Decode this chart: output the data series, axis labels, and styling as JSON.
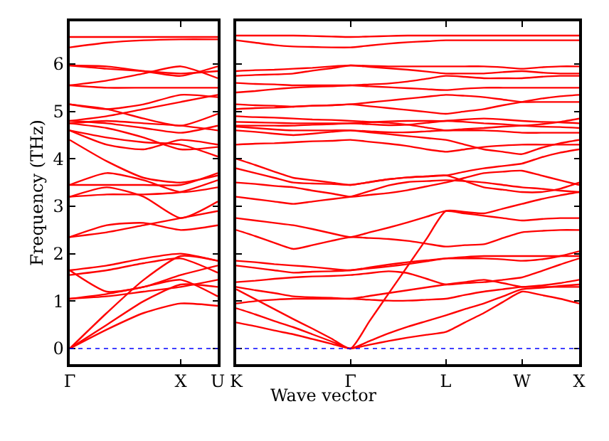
{
  "chart_data": [
    {
      "type": "line",
      "ylabel": "Frequency (THz)",
      "categories": [
        "Γ",
        null,
        null,
        "X",
        "U"
      ],
      "ylim": [
        -0.33,
        6.9
      ],
      "yticks": [
        0,
        1,
        2,
        3,
        4,
        5,
        6
      ],
      "ref_lines": [
        {
          "axis": "y",
          "value": 0,
          "color": "#0000ff",
          "line_style": "dotted"
        }
      ],
      "series": [
        {
          "color": "#ff0000",
          "values": [
            0,
            0.4,
            0.75,
            0.95,
            0.9
          ]
        },
        {
          "color": "#ff0000",
          "values": [
            0,
            0.5,
            1.0,
            1.35,
            1.3
          ]
        },
        {
          "color": "#ff0000",
          "values": [
            0,
            0.75,
            1.45,
            1.95,
            1.85
          ]
        },
        {
          "color": "#ff0000",
          "values": [
            1.05,
            1.1,
            1.2,
            1.3,
            1.45
          ]
        },
        {
          "color": "#ff0000",
          "values": [
            1.05,
            1.15,
            1.3,
            1.45,
            1.1
          ]
        },
        {
          "color": "#ff0000",
          "values": [
            1.55,
            1.65,
            1.8,
            1.9,
            1.6
          ]
        },
        {
          "color": "#ff0000",
          "values": [
            1.65,
            1.2,
            1.3,
            1.55,
            1.75
          ]
        },
        {
          "color": "#ff0000",
          "values": [
            1.65,
            1.75,
            1.9,
            2.0,
            1.85
          ]
        },
        {
          "color": "#ff0000",
          "values": [
            2.35,
            2.6,
            2.65,
            2.5,
            2.6
          ]
        },
        {
          "color": "#ff0000",
          "values": [
            2.35,
            2.45,
            2.6,
            2.75,
            2.9
          ]
        },
        {
          "color": "#ff0000",
          "values": [
            3.2,
            3.25,
            3.25,
            3.3,
            3.55
          ]
        },
        {
          "color": "#ff0000",
          "values": [
            3.2,
            3.4,
            3.2,
            2.75,
            3.1
          ]
        },
        {
          "color": "#ff0000",
          "values": [
            3.45,
            3.7,
            3.55,
            3.3,
            3.4
          ]
        },
        {
          "color": "#ff0000",
          "values": [
            3.45,
            3.45,
            3.45,
            3.45,
            3.7
          ]
        },
        {
          "color": "#ff0000",
          "values": [
            4.4,
            3.95,
            3.6,
            3.5,
            3.65
          ]
        },
        {
          "color": "#ff0000",
          "values": [
            4.6,
            4.3,
            4.2,
            4.4,
            4.3
          ]
        },
        {
          "color": "#ff0000",
          "values": [
            4.6,
            4.45,
            4.35,
            4.3,
            4.05
          ]
        },
        {
          "color": "#ff0000",
          "values": [
            4.75,
            4.65,
            4.45,
            4.2,
            4.25
          ]
        },
        {
          "color": "#ff0000",
          "values": [
            4.75,
            4.8,
            4.75,
            4.7,
            4.6
          ]
        },
        {
          "color": "#ff0000",
          "values": [
            4.8,
            4.75,
            4.65,
            4.55,
            4.7
          ]
        },
        {
          "color": "#ff0000",
          "values": [
            4.8,
            4.9,
            5.05,
            5.2,
            5.35
          ]
        },
        {
          "color": "#ff0000",
          "values": [
            5.15,
            5.05,
            5.15,
            5.35,
            5.3
          ]
        },
        {
          "color": "#ff0000",
          "values": [
            5.15,
            5.05,
            4.85,
            4.7,
            4.95
          ]
        },
        {
          "color": "#ff0000",
          "values": [
            5.55,
            5.5,
            5.5,
            5.5,
            5.5
          ]
        },
        {
          "color": "#ff0000",
          "values": [
            5.55,
            5.65,
            5.8,
            5.95,
            5.7
          ]
        },
        {
          "color": "#ff0000",
          "values": [
            5.97,
            5.9,
            5.85,
            5.8,
            5.85
          ]
        },
        {
          "color": "#ff0000",
          "values": [
            5.97,
            5.95,
            5.85,
            5.75,
            5.95
          ]
        },
        {
          "color": "#ff0000",
          "values": [
            6.35,
            6.45,
            6.5,
            6.52,
            6.52
          ]
        },
        {
          "color": "#ff0000",
          "values": [
            6.57,
            6.57,
            6.57,
            6.57,
            6.57
          ]
        }
      ]
    },
    {
      "type": "line",
      "xlabel": "Wave vector",
      "categories": [
        "K",
        null,
        null,
        null,
        null,
        null,
        "Γ",
        null,
        null,
        null,
        null,
        "L",
        null,
        null,
        null,
        "W",
        null,
        null,
        "X"
      ],
      "ylim": [
        -0.33,
        6.9
      ],
      "yticks": [
        {
          "value": 0,
          "label": null
        },
        {
          "value": 1,
          "label": null
        },
        {
          "value": 2,
          "label": null
        },
        {
          "value": 3,
          "label": null
        },
        {
          "value": 4,
          "label": null
        },
        {
          "value": 5,
          "label": null
        },
        {
          "value": 6,
          "label": null
        }
      ],
      "tick_labels": "x",
      "ref_lines": [
        {
          "axis": "y",
          "value": 0,
          "color": "#0000ff",
          "line_style": "dotted"
        }
      ],
      "series": [
        {
          "color": "#ff0000",
          "values": [
            0.55,
            0.47,
            0.38,
            0.3,
            0.2,
            0.1,
            0,
            0.08,
            0.16,
            0.23,
            0.29,
            0.35,
            0.55,
            0.75,
            0.98,
            1.2,
            1.13,
            1.05,
            0.95
          ]
        },
        {
          "color": "#ff0000",
          "values": [
            0.85,
            0.72,
            0.58,
            0.45,
            0.3,
            0.15,
            0,
            0.16,
            0.32,
            0.46,
            0.58,
            0.7,
            0.83,
            0.95,
            1.1,
            1.25,
            1.28,
            1.32,
            1.35
          ]
        },
        {
          "color": "#ff0000",
          "values": [
            1.25,
            1.04,
            0.83,
            0.62,
            0.42,
            0.21,
            0,
            0.58,
            1.16,
            1.74,
            2.32,
            2.9,
            2.88,
            2.85,
            2.95,
            3.05,
            3.15,
            3.23,
            3.3
          ]
        },
        {
          "color": "#ff0000",
          "values": [
            0.95,
            1.0,
            1.03,
            1.05,
            1.05,
            1.05,
            1.05,
            1.03,
            1.01,
            1.01,
            1.03,
            1.05,
            1.13,
            1.2,
            1.25,
            1.3,
            1.3,
            1.3,
            1.3
          ]
        },
        {
          "color": "#ff0000",
          "values": [
            1.3,
            1.23,
            1.17,
            1.1,
            1.08,
            1.07,
            1.05,
            1.11,
            1.17,
            1.23,
            1.29,
            1.35,
            1.4,
            1.45,
            1.38,
            1.3,
            1.33,
            1.38,
            1.45
          ]
        },
        {
          "color": "#ff0000",
          "values": [
            1.4,
            1.43,
            1.47,
            1.5,
            1.52,
            1.53,
            1.55,
            1.59,
            1.63,
            1.59,
            1.47,
            1.35,
            1.38,
            1.4,
            1.45,
            1.5,
            1.63,
            1.77,
            1.9
          ]
        },
        {
          "color": "#ff0000",
          "values": [
            1.75,
            1.7,
            1.65,
            1.6,
            1.62,
            1.63,
            1.65,
            1.69,
            1.73,
            1.78,
            1.84,
            1.9,
            1.93,
            1.95,
            1.95,
            1.95,
            1.95,
            1.95,
            1.95
          ]
        },
        {
          "color": "#ff0000",
          "values": [
            1.85,
            1.82,
            1.78,
            1.75,
            1.72,
            1.68,
            1.65,
            1.71,
            1.77,
            1.82,
            1.86,
            1.9,
            1.9,
            1.9,
            1.88,
            1.85,
            1.88,
            1.95,
            2.05
          ]
        },
        {
          "color": "#ff0000",
          "values": [
            2.5,
            2.37,
            2.23,
            2.1,
            2.18,
            2.27,
            2.35,
            2.33,
            2.31,
            2.27,
            2.21,
            2.15,
            2.18,
            2.2,
            2.33,
            2.45,
            2.48,
            2.5,
            2.5
          ]
        },
        {
          "color": "#ff0000",
          "values": [
            2.75,
            2.7,
            2.65,
            2.6,
            2.52,
            2.43,
            2.35,
            2.45,
            2.55,
            2.66,
            2.78,
            2.9,
            2.85,
            2.8,
            2.75,
            2.7,
            2.73,
            2.75,
            2.75
          ]
        },
        {
          "color": "#ff0000",
          "values": [
            3.2,
            3.15,
            3.1,
            3.05,
            3.1,
            3.15,
            3.2,
            3.32,
            3.44,
            3.51,
            3.53,
            3.55,
            3.53,
            3.5,
            3.45,
            3.4,
            3.37,
            3.33,
            3.3
          ]
        },
        {
          "color": "#ff0000",
          "values": [
            3.5,
            3.47,
            3.43,
            3.4,
            3.33,
            3.27,
            3.2,
            3.24,
            3.28,
            3.34,
            3.42,
            3.5,
            3.6,
            3.7,
            3.73,
            3.75,
            3.65,
            3.55,
            3.45
          ]
        },
        {
          "color": "#ff0000",
          "values": [
            3.8,
            3.7,
            3.6,
            3.5,
            3.48,
            3.47,
            3.45,
            3.51,
            3.57,
            3.61,
            3.63,
            3.65,
            3.53,
            3.4,
            3.35,
            3.3,
            3.3,
            3.37,
            3.5
          ]
        },
        {
          "color": "#ff0000",
          "values": [
            4.0,
            3.87,
            3.73,
            3.6,
            3.55,
            3.5,
            3.45,
            3.51,
            3.57,
            3.61,
            3.63,
            3.65,
            3.73,
            3.8,
            3.85,
            3.9,
            4.03,
            4.13,
            4.2
          ]
        },
        {
          "color": "#ff0000",
          "values": [
            4.3,
            4.32,
            4.33,
            4.35,
            4.37,
            4.38,
            4.4,
            4.36,
            4.32,
            4.27,
            4.2,
            4.15,
            4.2,
            4.25,
            4.28,
            4.3,
            4.3,
            4.3,
            4.3
          ]
        },
        {
          "color": "#ff0000",
          "values": [
            4.6,
            4.57,
            4.53,
            4.5,
            4.53,
            4.57,
            4.6,
            4.56,
            4.52,
            4.48,
            4.44,
            4.4,
            4.3,
            4.2,
            4.15,
            4.1,
            4.23,
            4.33,
            4.4
          ]
        },
        {
          "color": "#ff0000",
          "values": [
            4.68,
            4.65,
            4.62,
            4.6,
            4.6,
            4.6,
            4.6,
            4.58,
            4.56,
            4.56,
            4.58,
            4.6,
            4.6,
            4.6,
            4.58,
            4.55,
            4.55,
            4.55,
            4.55
          ]
        },
        {
          "color": "#ff0000",
          "values": [
            4.7,
            4.7,
            4.7,
            4.7,
            4.72,
            4.73,
            4.75,
            4.73,
            4.71,
            4.72,
            4.76,
            4.8,
            4.78,
            4.75,
            4.73,
            4.7,
            4.68,
            4.67,
            4.65
          ]
        },
        {
          "color": "#ff0000",
          "values": [
            4.78,
            4.77,
            4.76,
            4.75,
            4.75,
            4.75,
            4.75,
            4.77,
            4.79,
            4.8,
            4.8,
            4.8,
            4.83,
            4.85,
            4.83,
            4.8,
            4.78,
            4.77,
            4.75
          ]
        },
        {
          "color": "#ff0000",
          "values": [
            4.9,
            4.88,
            4.87,
            4.85,
            4.83,
            4.82,
            4.8,
            4.78,
            4.76,
            4.72,
            4.66,
            4.6,
            4.63,
            4.65,
            4.68,
            4.7,
            4.73,
            4.78,
            4.85
          ]
        },
        {
          "color": "#ff0000",
          "values": [
            5.05,
            5.07,
            5.08,
            5.1,
            5.12,
            5.13,
            5.15,
            5.19,
            5.23,
            5.27,
            5.31,
            5.35,
            5.33,
            5.3,
            5.25,
            5.2,
            5.2,
            5.2,
            5.2
          ]
        },
        {
          "color": "#ff0000",
          "values": [
            5.15,
            5.13,
            5.12,
            5.1,
            5.12,
            5.13,
            5.15,
            5.11,
            5.07,
            5.03,
            4.99,
            4.95,
            5.0,
            5.05,
            5.13,
            5.2,
            5.27,
            5.32,
            5.35
          ]
        },
        {
          "color": "#ff0000",
          "values": [
            5.4,
            5.43,
            5.47,
            5.5,
            5.52,
            5.53,
            5.55,
            5.53,
            5.51,
            5.49,
            5.47,
            5.45,
            5.48,
            5.5,
            5.5,
            5.5,
            5.5,
            5.5,
            5.5
          ]
        },
        {
          "color": "#ff0000",
          "values": [
            5.6,
            5.58,
            5.57,
            5.55,
            5.55,
            5.55,
            5.55,
            5.57,
            5.59,
            5.63,
            5.69,
            5.75,
            5.73,
            5.7,
            5.7,
            5.7,
            5.73,
            5.75,
            5.75
          ]
        },
        {
          "color": "#ff0000",
          "values": [
            5.75,
            5.77,
            5.78,
            5.8,
            5.86,
            5.91,
            5.97,
            5.94,
            5.91,
            5.88,
            5.84,
            5.8,
            5.8,
            5.8,
            5.83,
            5.85,
            5.82,
            5.8,
            5.8
          ]
        },
        {
          "color": "#ff0000",
          "values": [
            5.85,
            5.87,
            5.88,
            5.9,
            5.92,
            5.95,
            5.97,
            5.96,
            5.95,
            5.95,
            5.95,
            5.95,
            5.95,
            5.95,
            5.93,
            5.9,
            5.93,
            5.95,
            5.95
          ]
        },
        {
          "color": "#ff0000",
          "values": [
            6.5,
            6.45,
            6.4,
            6.37,
            6.36,
            6.35,
            6.35,
            6.39,
            6.43,
            6.46,
            6.48,
            6.5,
            6.5,
            6.5,
            6.5,
            6.5,
            6.5,
            6.5,
            6.5
          ]
        },
        {
          "color": "#ff0000",
          "values": [
            6.6,
            6.6,
            6.6,
            6.6,
            6.59,
            6.58,
            6.57,
            6.58,
            6.59,
            6.6,
            6.6,
            6.6,
            6.6,
            6.6,
            6.6,
            6.6,
            6.6,
            6.6,
            6.6
          ]
        }
      ]
    }
  ]
}
